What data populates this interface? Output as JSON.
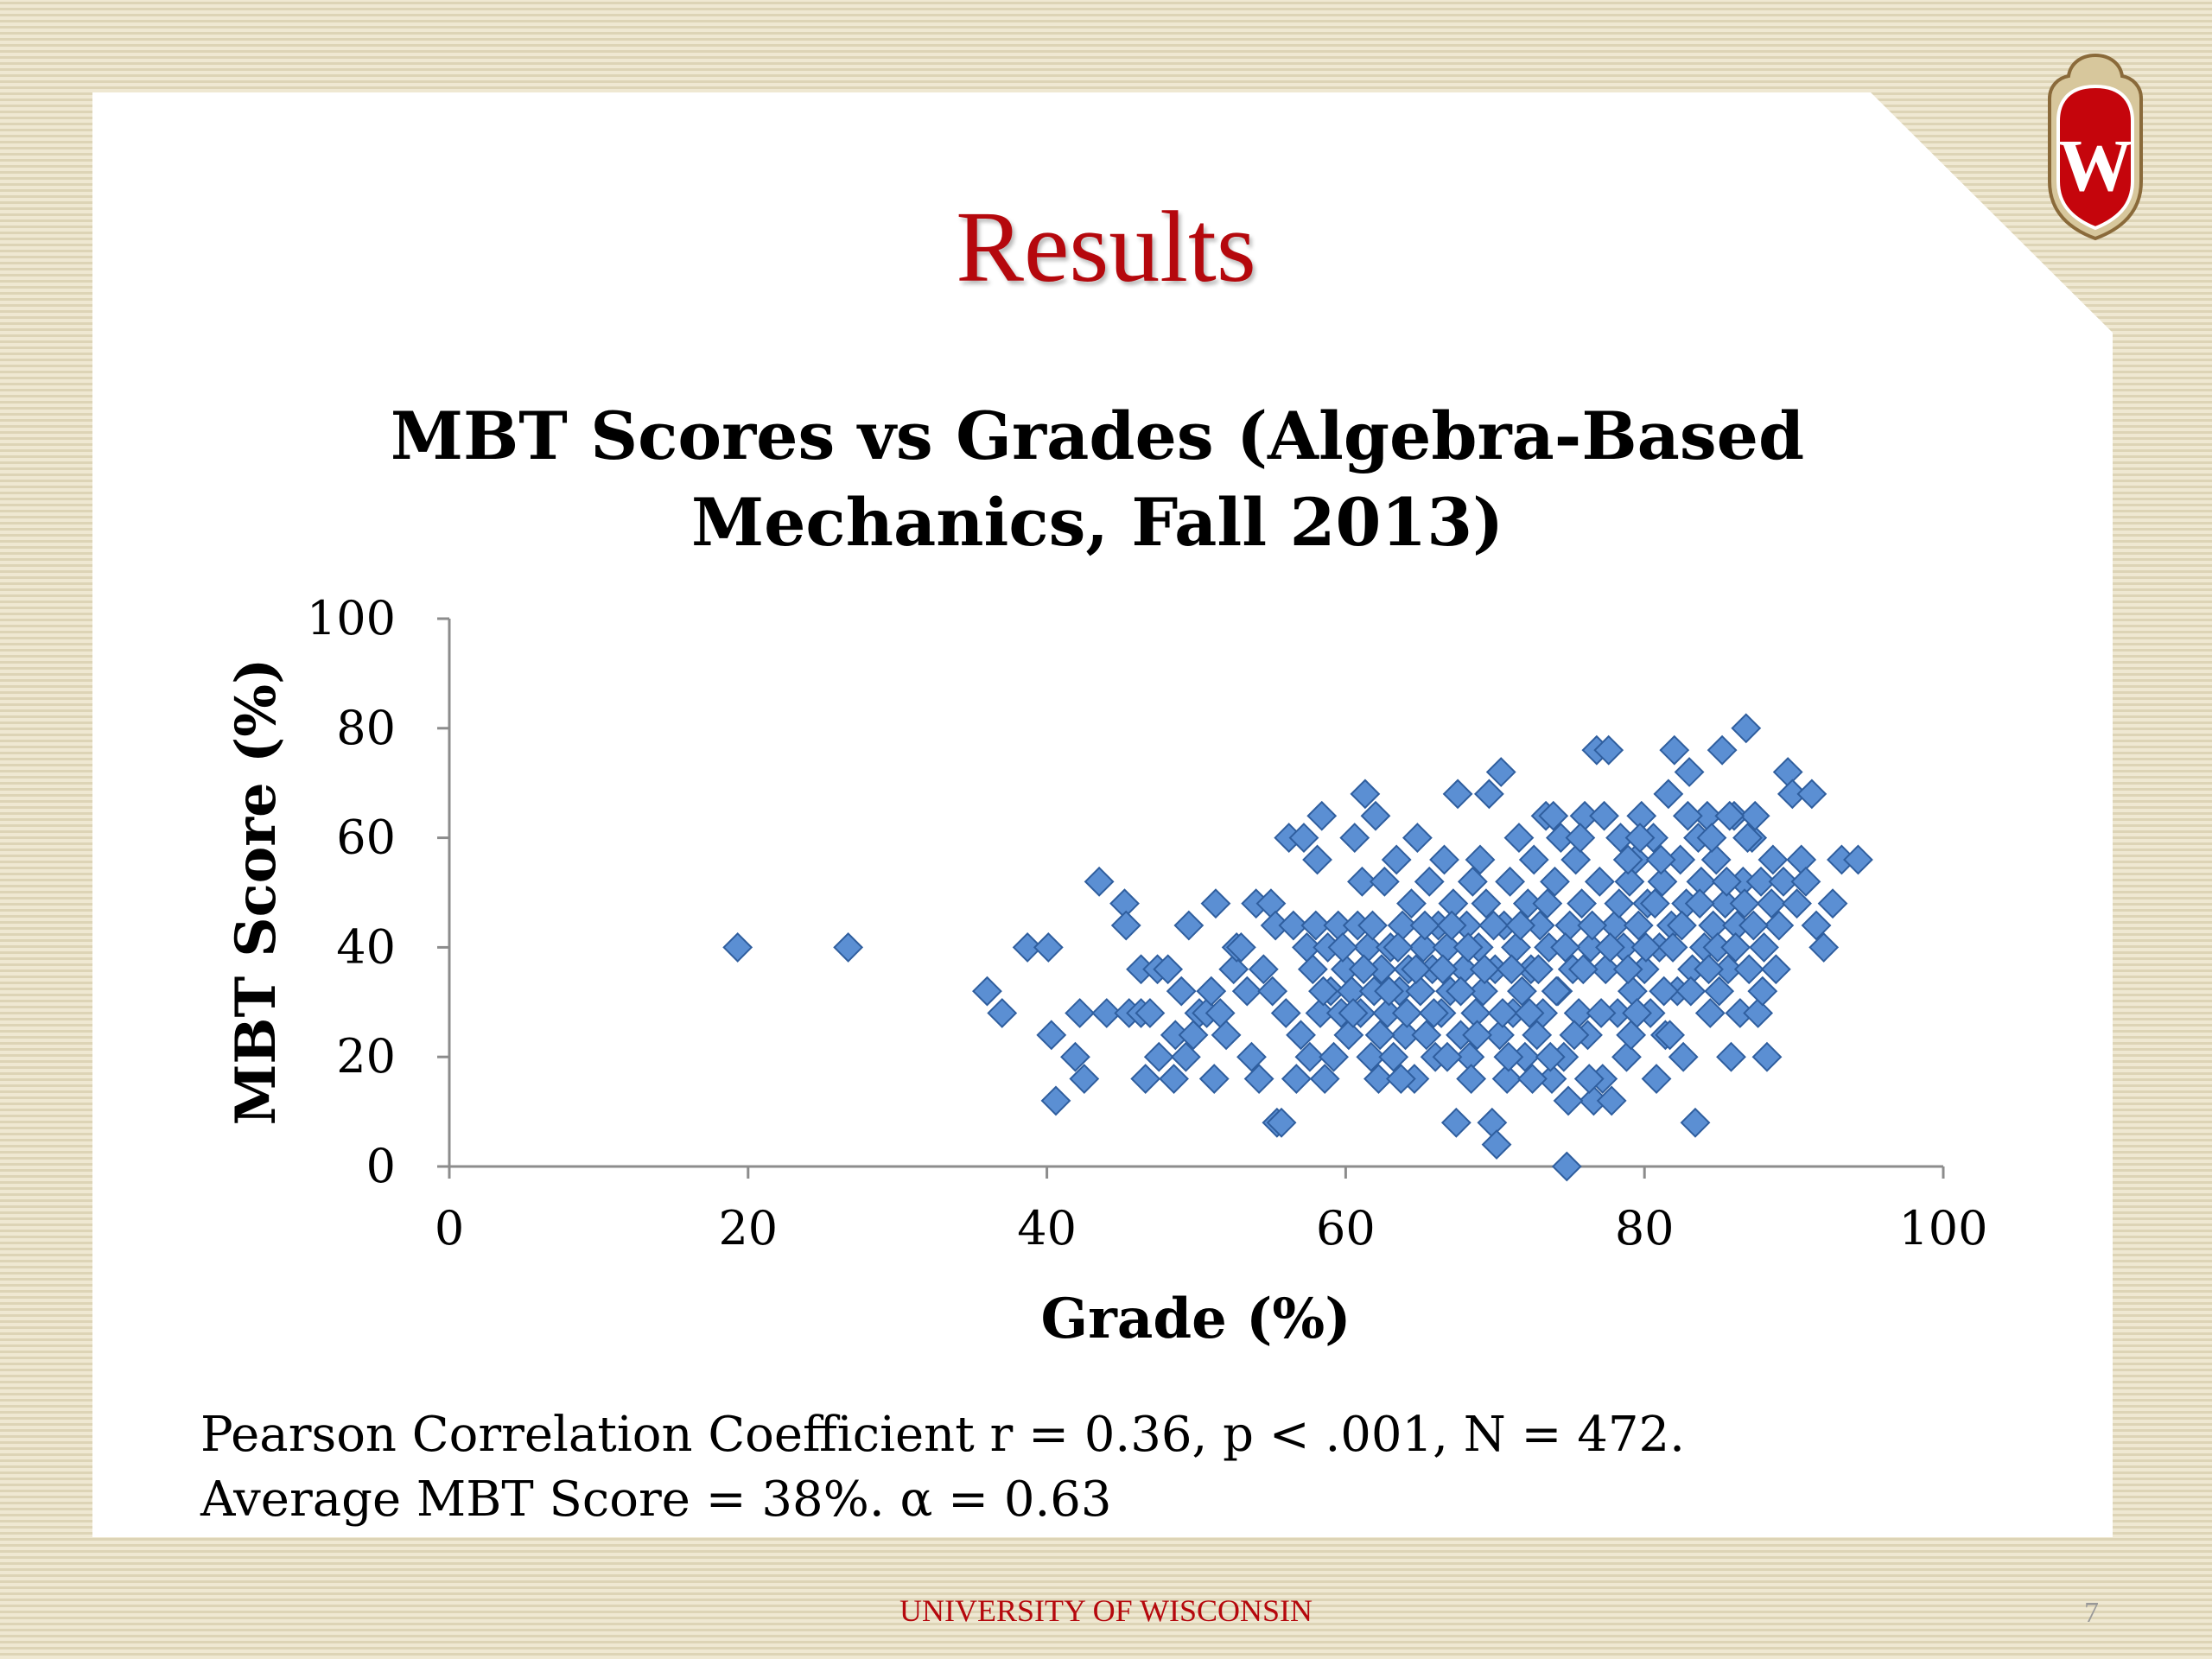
{
  "slide": {
    "title": "Results",
    "footer": "UNIVERSITY OF WISCONSIN",
    "page_number": "7",
    "logo_text": "W",
    "notes": [
      "Pearson Correlation Coefficient r = 0.36, p < .001, N = 472.",
      "Average MBT Score = 38%. α = 0.63"
    ],
    "colors": {
      "title": "#b5080d",
      "marker": "#5b8fd3",
      "marker_edge": "#2f5e9e"
    }
  },
  "chart_data": {
    "type": "scatter",
    "title_lines": [
      "MBT Scores vs Grades (Algebra-Based",
      "Mechanics, Fall 2013)"
    ],
    "xlabel": "Grade (%)",
    "ylabel": "MBT Score (%)",
    "xlim": [
      0,
      100
    ],
    "ylim": [
      0,
      100
    ],
    "xticks": [
      "0",
      "20",
      "40",
      "60",
      "80",
      "100"
    ],
    "yticks": [
      "0",
      "20",
      "40",
      "60",
      "80",
      "100"
    ],
    "grid": false,
    "legend": "none",
    "marker": "diamond",
    "points": [
      [
        19.3,
        40
      ],
      [
        26.7,
        40
      ],
      [
        36,
        32
      ],
      [
        37,
        28
      ],
      [
        38.7,
        40
      ],
      [
        40.1,
        40
      ],
      [
        40.3,
        24
      ],
      [
        40.6,
        12
      ],
      [
        41.9,
        20
      ],
      [
        42.2,
        28
      ],
      [
        42.5,
        16
      ],
      [
        43.5,
        52
      ],
      [
        44,
        28
      ],
      [
        45.2,
        48
      ],
      [
        45.3,
        44
      ],
      [
        45.5,
        28
      ],
      [
        46.3,
        36
      ],
      [
        46.3,
        28
      ],
      [
        46.6,
        16
      ],
      [
        46.9,
        28
      ],
      [
        47.4,
        36
      ],
      [
        47.5,
        20
      ],
      [
        48.1,
        36
      ],
      [
        48.5,
        16
      ],
      [
        48.6,
        24
      ],
      [
        49,
        32
      ],
      [
        49.3,
        20
      ],
      [
        49.5,
        44
      ],
      [
        49.8,
        24
      ],
      [
        50.2,
        28
      ],
      [
        50.7,
        28
      ],
      [
        51,
        32
      ],
      [
        51.2,
        16
      ],
      [
        51.3,
        48
      ],
      [
        51.6,
        28
      ],
      [
        52,
        24
      ],
      [
        52.5,
        36
      ],
      [
        52.7,
        40
      ],
      [
        53,
        40
      ],
      [
        53.4,
        32
      ],
      [
        53.7,
        20
      ],
      [
        54,
        48
      ],
      [
        54.2,
        16
      ],
      [
        54.5,
        36
      ],
      [
        55,
        48
      ],
      [
        55.1,
        32
      ],
      [
        55.3,
        44
      ],
      [
        55.4,
        8
      ],
      [
        55.7,
        8
      ],
      [
        56,
        28
      ],
      [
        56.2,
        60
      ],
      [
        56.5,
        44
      ],
      [
        56.7,
        16
      ],
      [
        57,
        24
      ],
      [
        57.2,
        60
      ],
      [
        57.4,
        40
      ],
      [
        57.6,
        20
      ],
      [
        57.8,
        36
      ],
      [
        58,
        44
      ],
      [
        58.1,
        56
      ],
      [
        58.3,
        28
      ],
      [
        58.4,
        64
      ],
      [
        58.6,
        16
      ],
      [
        58.8,
        40
      ],
      [
        59,
        32
      ],
      [
        59.2,
        20
      ],
      [
        59.5,
        44
      ],
      [
        59.7,
        28
      ],
      [
        60,
        36
      ],
      [
        60.2,
        24
      ],
      [
        60.4,
        32
      ],
      [
        60.6,
        60
      ],
      [
        60.8,
        44
      ],
      [
        61,
        28
      ],
      [
        61.1,
        52
      ],
      [
        61.3,
        68
      ],
      [
        61.5,
        40
      ],
      [
        61.7,
        20
      ],
      [
        61.9,
        32
      ],
      [
        62,
        64
      ],
      [
        62.2,
        16
      ],
      [
        62.4,
        36
      ],
      [
        62.6,
        52
      ],
      [
        62.8,
        28
      ],
      [
        63,
        40
      ],
      [
        63.2,
        20
      ],
      [
        63.4,
        56
      ],
      [
        63.6,
        32
      ],
      [
        63.8,
        44
      ],
      [
        64,
        24
      ],
      [
        64.2,
        36
      ],
      [
        64.4,
        48
      ],
      [
        64.6,
        16
      ],
      [
        64.8,
        60
      ],
      [
        65,
        32
      ],
      [
        65.2,
        40
      ],
      [
        65.4,
        24
      ],
      [
        65.6,
        52
      ],
      [
        65.8,
        36
      ],
      [
        66,
        20
      ],
      [
        66.2,
        44
      ],
      [
        66.4,
        28
      ],
      [
        66.6,
        56
      ],
      [
        66.8,
        40
      ],
      [
        67,
        32
      ],
      [
        67.2,
        48
      ],
      [
        67.4,
        8
      ],
      [
        67.5,
        68
      ],
      [
        67.7,
        24
      ],
      [
        67.9,
        36
      ],
      [
        68.1,
        44
      ],
      [
        68.3,
        20
      ],
      [
        68.5,
        52
      ],
      [
        68.7,
        28
      ],
      [
        68.9,
        40
      ],
      [
        69,
        56
      ],
      [
        69.2,
        32
      ],
      [
        69.4,
        48
      ],
      [
        69.6,
        68
      ],
      [
        69.8,
        8
      ],
      [
        70,
        36
      ],
      [
        70.1,
        4
      ],
      [
        70.3,
        24
      ],
      [
        70.4,
        72
      ],
      [
        70.6,
        44
      ],
      [
        70.8,
        16
      ],
      [
        71,
        52
      ],
      [
        71.2,
        28
      ],
      [
        71.4,
        40
      ],
      [
        71.6,
        60
      ],
      [
        71.8,
        32
      ],
      [
        72,
        20
      ],
      [
        72.2,
        48
      ],
      [
        72.4,
        36
      ],
      [
        72.6,
        56
      ],
      [
        72.8,
        24
      ],
      [
        73,
        44
      ],
      [
        73.2,
        28
      ],
      [
        73.4,
        64
      ],
      [
        73.6,
        40
      ],
      [
        73.8,
        16
      ],
      [
        74,
        52
      ],
      [
        74.2,
        32
      ],
      [
        74.4,
        60
      ],
      [
        74.6,
        20
      ],
      [
        74.8,
        0
      ],
      [
        75,
        44
      ],
      [
        75.2,
        36
      ],
      [
        75.4,
        56
      ],
      [
        75.6,
        28
      ],
      [
        75.8,
        48
      ],
      [
        76,
        64
      ],
      [
        76.2,
        24
      ],
      [
        76.4,
        40
      ],
      [
        76.6,
        12
      ],
      [
        76.8,
        76
      ],
      [
        77,
        52
      ],
      [
        77.2,
        16
      ],
      [
        77.4,
        36
      ],
      [
        77.6,
        76
      ],
      [
        77.8,
        12
      ],
      [
        78,
        44
      ],
      [
        78.2,
        28
      ],
      [
        78.4,
        60
      ],
      [
        78.6,
        40
      ],
      [
        78.8,
        20
      ],
      [
        79,
        52
      ],
      [
        79.2,
        32
      ],
      [
        79.4,
        56
      ],
      [
        79.6,
        44
      ],
      [
        79.8,
        64
      ],
      [
        80,
        36
      ],
      [
        80.2,
        48
      ],
      [
        80.4,
        28
      ],
      [
        80.6,
        60
      ],
      [
        80.8,
        16
      ],
      [
        81,
        40
      ],
      [
        81.2,
        52
      ],
      [
        81.4,
        24
      ],
      [
        81.6,
        68
      ],
      [
        81.8,
        44
      ],
      [
        82,
        76
      ],
      [
        82.2,
        32
      ],
      [
        82.4,
        56
      ],
      [
        82.6,
        20
      ],
      [
        82.8,
        48
      ],
      [
        83,
        72
      ],
      [
        83.2,
        36
      ],
      [
        83.4,
        8
      ],
      [
        83.6,
        60
      ],
      [
        83.8,
        52
      ],
      [
        84,
        40
      ],
      [
        84.2,
        64
      ],
      [
        84.4,
        28
      ],
      [
        84.6,
        44
      ],
      [
        84.8,
        56
      ],
      [
        85,
        32
      ],
      [
        85.2,
        76
      ],
      [
        85.4,
        48
      ],
      [
        85.6,
        36
      ],
      [
        85.8,
        20
      ],
      [
        86,
        64
      ],
      [
        86.2,
        44
      ],
      [
        86.4,
        28
      ],
      [
        86.6,
        52
      ],
      [
        86.8,
        80
      ],
      [
        87,
        36
      ],
      [
        87.2,
        60
      ],
      [
        87.4,
        64
      ],
      [
        87.6,
        28
      ],
      [
        87.8,
        52
      ],
      [
        88,
        40
      ],
      [
        88.2,
        20
      ],
      [
        88.5,
        48
      ],
      [
        88.8,
        36
      ],
      [
        89,
        44
      ],
      [
        89.3,
        52
      ],
      [
        89.6,
        72
      ],
      [
        89.9,
        68
      ],
      [
        90.2,
        48
      ],
      [
        90.5,
        56
      ],
      [
        90.8,
        52
      ],
      [
        91.2,
        68
      ],
      [
        91.5,
        44
      ],
      [
        92,
        40
      ],
      [
        92.6,
        48
      ],
      [
        93.2,
        56
      ],
      [
        94.3,
        56
      ],
      [
        58.5,
        32
      ],
      [
        59.8,
        40
      ],
      [
        60.5,
        28
      ],
      [
        61.2,
        36
      ],
      [
        61.8,
        44
      ],
      [
        62.3,
        24
      ],
      [
        62.9,
        32
      ],
      [
        63.5,
        40
      ],
      [
        64.1,
        28
      ],
      [
        64.7,
        36
      ],
      [
        65.3,
        44
      ],
      [
        65.9,
        28
      ],
      [
        66.5,
        36
      ],
      [
        67.1,
        44
      ],
      [
        67.7,
        32
      ],
      [
        68.2,
        40
      ],
      [
        68.8,
        24
      ],
      [
        69.3,
        36
      ],
      [
        69.9,
        44
      ],
      [
        70.5,
        28
      ],
      [
        71.1,
        36
      ],
      [
        71.7,
        44
      ],
      [
        72.3,
        28
      ],
      [
        72.9,
        36
      ],
      [
        73.5,
        48
      ],
      [
        74.1,
        32
      ],
      [
        74.7,
        40
      ],
      [
        75.3,
        24
      ],
      [
        75.9,
        36
      ],
      [
        76.5,
        44
      ],
      [
        77.1,
        28
      ],
      [
        77.7,
        40
      ],
      [
        78.3,
        48
      ],
      [
        78.9,
        36
      ],
      [
        79.5,
        28
      ],
      [
        80.1,
        40
      ],
      [
        80.7,
        48
      ],
      [
        81.3,
        32
      ],
      [
        81.9,
        40
      ],
      [
        82.5,
        44
      ],
      [
        83.1,
        32
      ],
      [
        83.7,
        48
      ],
      [
        84.3,
        36
      ],
      [
        84.9,
        40
      ],
      [
        85.5,
        52
      ],
      [
        86.1,
        40
      ],
      [
        86.7,
        48
      ],
      [
        87.3,
        44
      ],
      [
        87.9,
        32
      ],
      [
        88.6,
        56
      ],
      [
        66.8,
        20
      ],
      [
        70.9,
        20
      ],
      [
        73.7,
        20
      ],
      [
        76.3,
        16
      ],
      [
        79.1,
        24
      ],
      [
        81.7,
        24
      ],
      [
        68.4,
        16
      ],
      [
        72.5,
        16
      ],
      [
        74.9,
        12
      ],
      [
        63.7,
        16
      ],
      [
        77.3,
        64
      ],
      [
        79.7,
        60
      ],
      [
        82.9,
        64
      ],
      [
        85.7,
        64
      ],
      [
        73.9,
        64
      ],
      [
        75.7,
        60
      ],
      [
        78.9,
        56
      ],
      [
        81.1,
        56
      ],
      [
        84.5,
        60
      ],
      [
        86.9,
        60
      ]
    ]
  }
}
